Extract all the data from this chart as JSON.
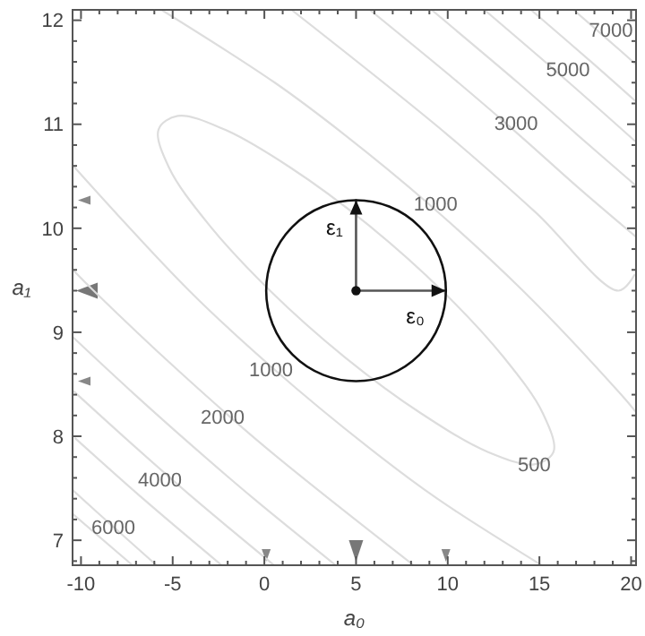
{
  "chart_data": {
    "type": "line",
    "xlabel": "a₀",
    "ylabel": "a₁",
    "xlim": [
      -10.46,
      20.27
    ],
    "ylim": [
      6.76,
      12.1
    ],
    "xticks": [
      -10,
      {
        "value": -9,
        "label": null
      },
      {
        "value": -8,
        "label": null
      },
      {
        "value": -7,
        "label": null
      },
      {
        "value": -6,
        "label": null
      },
      -5,
      {
        "value": -4,
        "label": null
      },
      {
        "value": -3,
        "label": null
      },
      {
        "value": -2,
        "label": null
      },
      {
        "value": -1,
        "label": null
      },
      0,
      {
        "value": 1,
        "label": null
      },
      {
        "value": 2,
        "label": null
      },
      {
        "value": 3,
        "label": null
      },
      {
        "value": 4,
        "label": null
      },
      5,
      {
        "value": 6,
        "label": null
      },
      {
        "value": 7,
        "label": null
      },
      {
        "value": 8,
        "label": null
      },
      {
        "value": 9,
        "label": null
      },
      10,
      {
        "value": 11,
        "label": null
      },
      {
        "value": 12,
        "label": null
      },
      {
        "value": 13,
        "label": null
      },
      {
        "value": 14,
        "label": null
      },
      15,
      {
        "value": 16,
        "label": null
      },
      {
        "value": 17,
        "label": null
      },
      {
        "value": 18,
        "label": null
      },
      {
        "value": 19,
        "label": null
      },
      20
    ],
    "yticks": [
      {
        "value": 6.8,
        "label": null
      },
      7,
      {
        "value": 7.2,
        "label": null
      },
      {
        "value": 7.4,
        "label": null
      },
      {
        "value": 7.6,
        "label": null
      },
      {
        "value": 7.8,
        "label": null
      },
      8,
      {
        "value": 8.2,
        "label": null
      },
      {
        "value": 8.4,
        "label": null
      },
      {
        "value": 8.6,
        "label": null
      },
      {
        "value": 8.8,
        "label": null
      },
      9,
      {
        "value": 9.2,
        "label": null
      },
      {
        "value": 9.4,
        "label": null
      },
      {
        "value": 9.6,
        "label": null
      },
      {
        "value": 9.8,
        "label": null
      },
      10,
      {
        "value": 10.2,
        "label": null
      },
      {
        "value": 10.4,
        "label": null
      },
      {
        "value": 10.6,
        "label": null
      },
      {
        "value": 10.8,
        "label": null
      },
      11,
      {
        "value": 11.2,
        "label": null
      },
      {
        "value": 11.4,
        "label": null
      },
      {
        "value": 11.6,
        "label": null
      },
      {
        "value": 11.8,
        "label": null
      },
      12
    ],
    "series": [
      {
        "color": "#dddddd",
        "x": [
          -5.61,
          0.57,
          4.37,
          8.92,
          14.1,
          19.46,
          20.23
        ],
        "values": [
          12.1,
          11.4,
          10.9,
          10.24,
          9.4,
          8.4,
          8.24
        ]
      },
      {
        "color": "#dddddd",
        "x": [
          -10.42,
          -4.1,
          0.56,
          5.63,
          9.43,
          15.12
        ],
        "values": [
          10.6,
          9.4,
          8.64,
          7.9,
          7.4,
          6.76
        ]
      },
      {
        "color": "#dddddd",
        "x": [
          1.48,
          9.98,
          14.81,
          19.31,
          20.18
        ],
        "values": [
          12.1,
          10.9,
          10.15,
          9.4,
          9.55
        ]
      },
      {
        "color": "#dddddd",
        "x": [
          -10.44,
          -9.31,
          -4.81,
          0.02,
          8.14
        ],
        "values": [
          9.6,
          9.4,
          8.65,
          7.9,
          6.76
        ]
      },
      {
        "color": "#dddddd",
        "x": [
          5.75,
          10.58,
          13.88,
          17.06,
          20.25
        ],
        "values": [
          12.1,
          11.4,
          10.9,
          10.4,
          9.92
        ]
      },
      {
        "color": "#dddddd",
        "x": [
          -10.42,
          -7.06,
          -3.88,
          -0.58,
          3.89
        ],
        "values": [
          8.95,
          8.4,
          7.9,
          7.4,
          6.76
        ]
      },
      {
        "color": "#dddddd",
        "x": [
          9.12,
          13.83,
          17.06,
          20.26
        ],
        "values": [
          12.1,
          11.4,
          10.9,
          10.41
        ]
      },
      {
        "color": "#dddddd",
        "x": [
          -10.38,
          -7.06,
          -3.83,
          0.53
        ],
        "values": [
          8.43,
          7.9,
          7.4,
          6.76
        ]
      },
      {
        "color": "#dddddd",
        "x": [
          12.0,
          16.62,
          20.2
        ],
        "values": [
          12.1,
          11.4,
          10.84
        ]
      },
      {
        "color": "#dddddd",
        "x": [
          -10.31,
          -6.62,
          -2.33
        ],
        "values": [
          7.98,
          7.4,
          6.76
        ]
      },
      {
        "color": "#dddddd",
        "x": [
          14.54,
          17.83,
          20.26
        ],
        "values": [
          12.1,
          11.6,
          11.22
        ]
      },
      {
        "color": "#dddddd",
        "x": [
          -10.44,
          -8.24,
          -5.88
        ],
        "values": [
          7.48,
          7.13,
          6.76
        ]
      },
      {
        "color": "#dddddd",
        "x": [
          16.86,
          18.82,
          20.24
        ],
        "values": [
          12.1,
          11.8,
          11.58
        ]
      },
      {
        "color": "#dddddd",
        "x": [
          -10.43,
          -7.19
        ],
        "values": [
          7.25,
          6.76
        ]
      },
      {
        "color": "#555555",
        "x": [
          5,
          9.9
        ],
        "values": [
          9.4,
          9.4
        ]
      },
      {
        "color": "#555555",
        "x": [
          5,
          5
        ],
        "values": [
          9.4,
          10.27
        ]
      }
    ],
    "annotations": [
      {
        "text": "1000",
        "x": 9.34,
        "y": 10.24
      },
      {
        "text": "1000",
        "x": 0.36,
        "y": 8.64
      },
      {
        "text": "2000",
        "x": -2.28,
        "y": 8.19
      },
      {
        "text": "3000",
        "x": 13.73,
        "y": 11.01
      },
      {
        "text": "4000",
        "x": -5.7,
        "y": 7.58
      },
      {
        "text": "5000",
        "x": 16.56,
        "y": 11.53
      },
      {
        "text": "6000",
        "x": -8.24,
        "y": 7.13
      },
      {
        "text": "7000",
        "x": 18.9,
        "y": 11.91
      },
      "ε₀",
      "ε₁",
      "500"
    ]
  }
}
